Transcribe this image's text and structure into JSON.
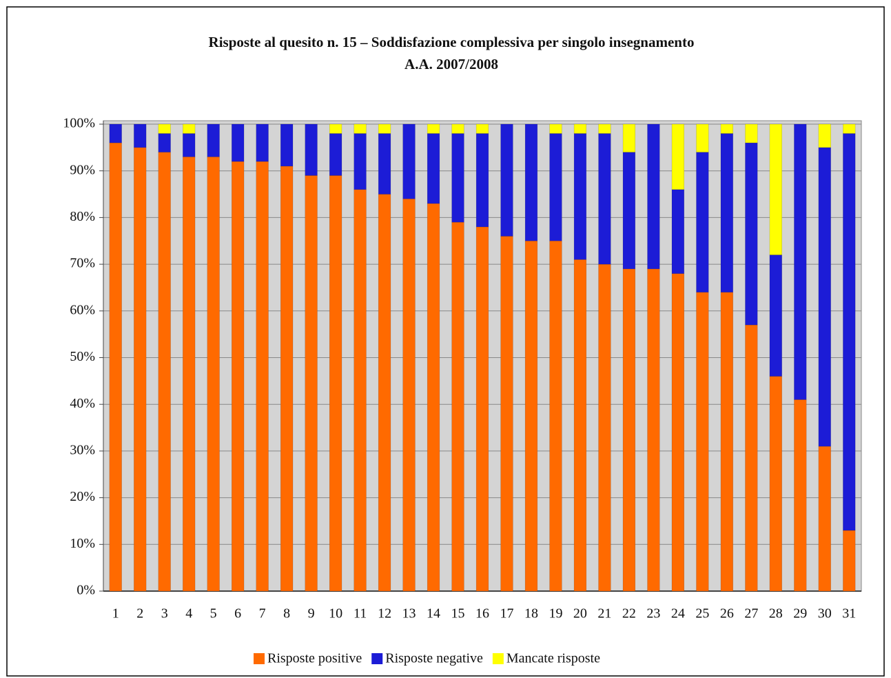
{
  "chart_data": {
    "type": "stacked_bar",
    "title": "Risposte al quesito n. 15 – Soddisfazione complessiva per singolo insegnamento",
    "subtitle": "A.A. 2007/2008",
    "categories": [
      "1",
      "2",
      "3",
      "4",
      "5",
      "6",
      "7",
      "8",
      "9",
      "10",
      "11",
      "12",
      "13",
      "14",
      "15",
      "16",
      "17",
      "18",
      "19",
      "20",
      "21",
      "22",
      "23",
      "24",
      "25",
      "26",
      "27",
      "28",
      "29",
      "30",
      "31"
    ],
    "series": [
      {
        "name": "Risposte positive",
        "color": "#ff6a00",
        "values": [
          96,
          95,
          94,
          93,
          93,
          92,
          92,
          91,
          89,
          89,
          86,
          85,
          84,
          83,
          79,
          78,
          76,
          75,
          75,
          71,
          70,
          69,
          69,
          68,
          64,
          64,
          57,
          46,
          41,
          31,
          13
        ]
      },
      {
        "name": "Risposte negative",
        "color": "#1c1cd6",
        "values": [
          4,
          5,
          4,
          5,
          7,
          8,
          8,
          9,
          11,
          9,
          12,
          13,
          16,
          15,
          19,
          20,
          24,
          25,
          23,
          27,
          28,
          25,
          31,
          18,
          30,
          34,
          39,
          26,
          59,
          64,
          85
        ]
      },
      {
        "name": "Mancate risposte",
        "color": "#ffff00",
        "values": [
          0,
          0,
          2,
          2,
          0,
          0,
          0,
          0,
          0,
          2,
          2,
          2,
          0,
          2,
          2,
          2,
          0,
          0,
          2,
          2,
          2,
          6,
          0,
          14,
          6,
          2,
          4,
          28,
          0,
          5,
          2
        ]
      }
    ],
    "ylim": [
      0,
      100
    ],
    "yticks": [
      {
        "value": 0,
        "label": "0%"
      },
      {
        "value": 10,
        "label": "10%"
      },
      {
        "value": 20,
        "label": "20%"
      },
      {
        "value": 30,
        "label": "30%"
      },
      {
        "value": 40,
        "label": "40%"
      },
      {
        "value": 50,
        "label": "50%"
      },
      {
        "value": 60,
        "label": "60%"
      },
      {
        "value": 70,
        "label": "70%"
      },
      {
        "value": 80,
        "label": "80%"
      },
      {
        "value": 90,
        "label": "90%"
      },
      {
        "value": 100,
        "label": "100%"
      }
    ],
    "grid": true
  }
}
